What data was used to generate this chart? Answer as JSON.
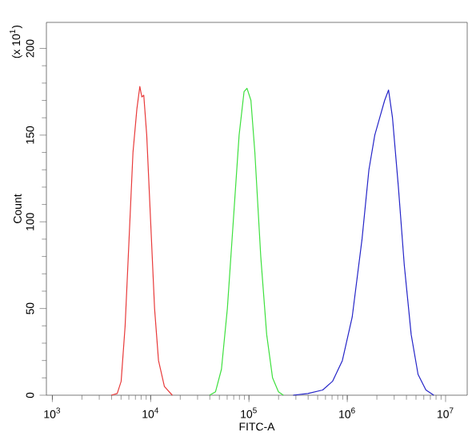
{
  "chart_data": {
    "type": "line",
    "xlabel": "FITC-A",
    "ylabel": "Count",
    "log": "x",
    "annotations": [
      "(x 10$^{1}$)"
    ],
    "xlim": [
      870,
      16600000
    ],
    "ylim": [
      0,
      215
    ],
    "xticks": [
      {
        "value": 1000,
        "label": "10$^{3}$"
      },
      {
        "value": 10000,
        "label": "10$^{4}$"
      },
      {
        "value": 100000,
        "label": "10$^{5}$"
      },
      {
        "value": 1000000,
        "label": "10$^{6}$"
      },
      {
        "value": 10000000,
        "label": "10$^{7}$"
      }
    ],
    "yticks": [
      0,
      50,
      100,
      150,
      200
    ],
    "series": [
      {
        "color": "#e83a3a",
        "x": [
          3980,
          4570,
          5010,
          5500,
          6030,
          6610,
          7240,
          7760,
          8130,
          8510,
          9120,
          10000,
          10960,
          12020,
          13800,
          16600
        ],
        "values": [
          0,
          1,
          8,
          40,
          90,
          140,
          165,
          178,
          172,
          173,
          150,
          100,
          50,
          20,
          5,
          0
        ]
      },
      {
        "color": "#3ee03e",
        "x": [
          39800,
          45700,
          52500,
          60300,
          69200,
          79400,
          89100,
          95500,
          104700,
          114800,
          131800,
          151400,
          173800,
          199500,
          223900
        ],
        "values": [
          0,
          2,
          15,
          50,
          100,
          150,
          175,
          177,
          170,
          140,
          80,
          35,
          10,
          2,
          0
        ]
      },
      {
        "color": "#2424c8",
        "x": [
          281800,
          398100,
          562300,
          707900,
          891300,
          1122000,
          1413000,
          1660000,
          1905000,
          2138000,
          2399000,
          2630000,
          2884000,
          3311000,
          3802000,
          4467000,
          5248000,
          6310000,
          7586000
        ],
        "values": [
          0,
          1,
          3,
          8,
          20,
          45,
          90,
          130,
          150,
          160,
          170,
          176,
          160,
          120,
          75,
          35,
          12,
          3,
          0
        ]
      }
    ]
  }
}
